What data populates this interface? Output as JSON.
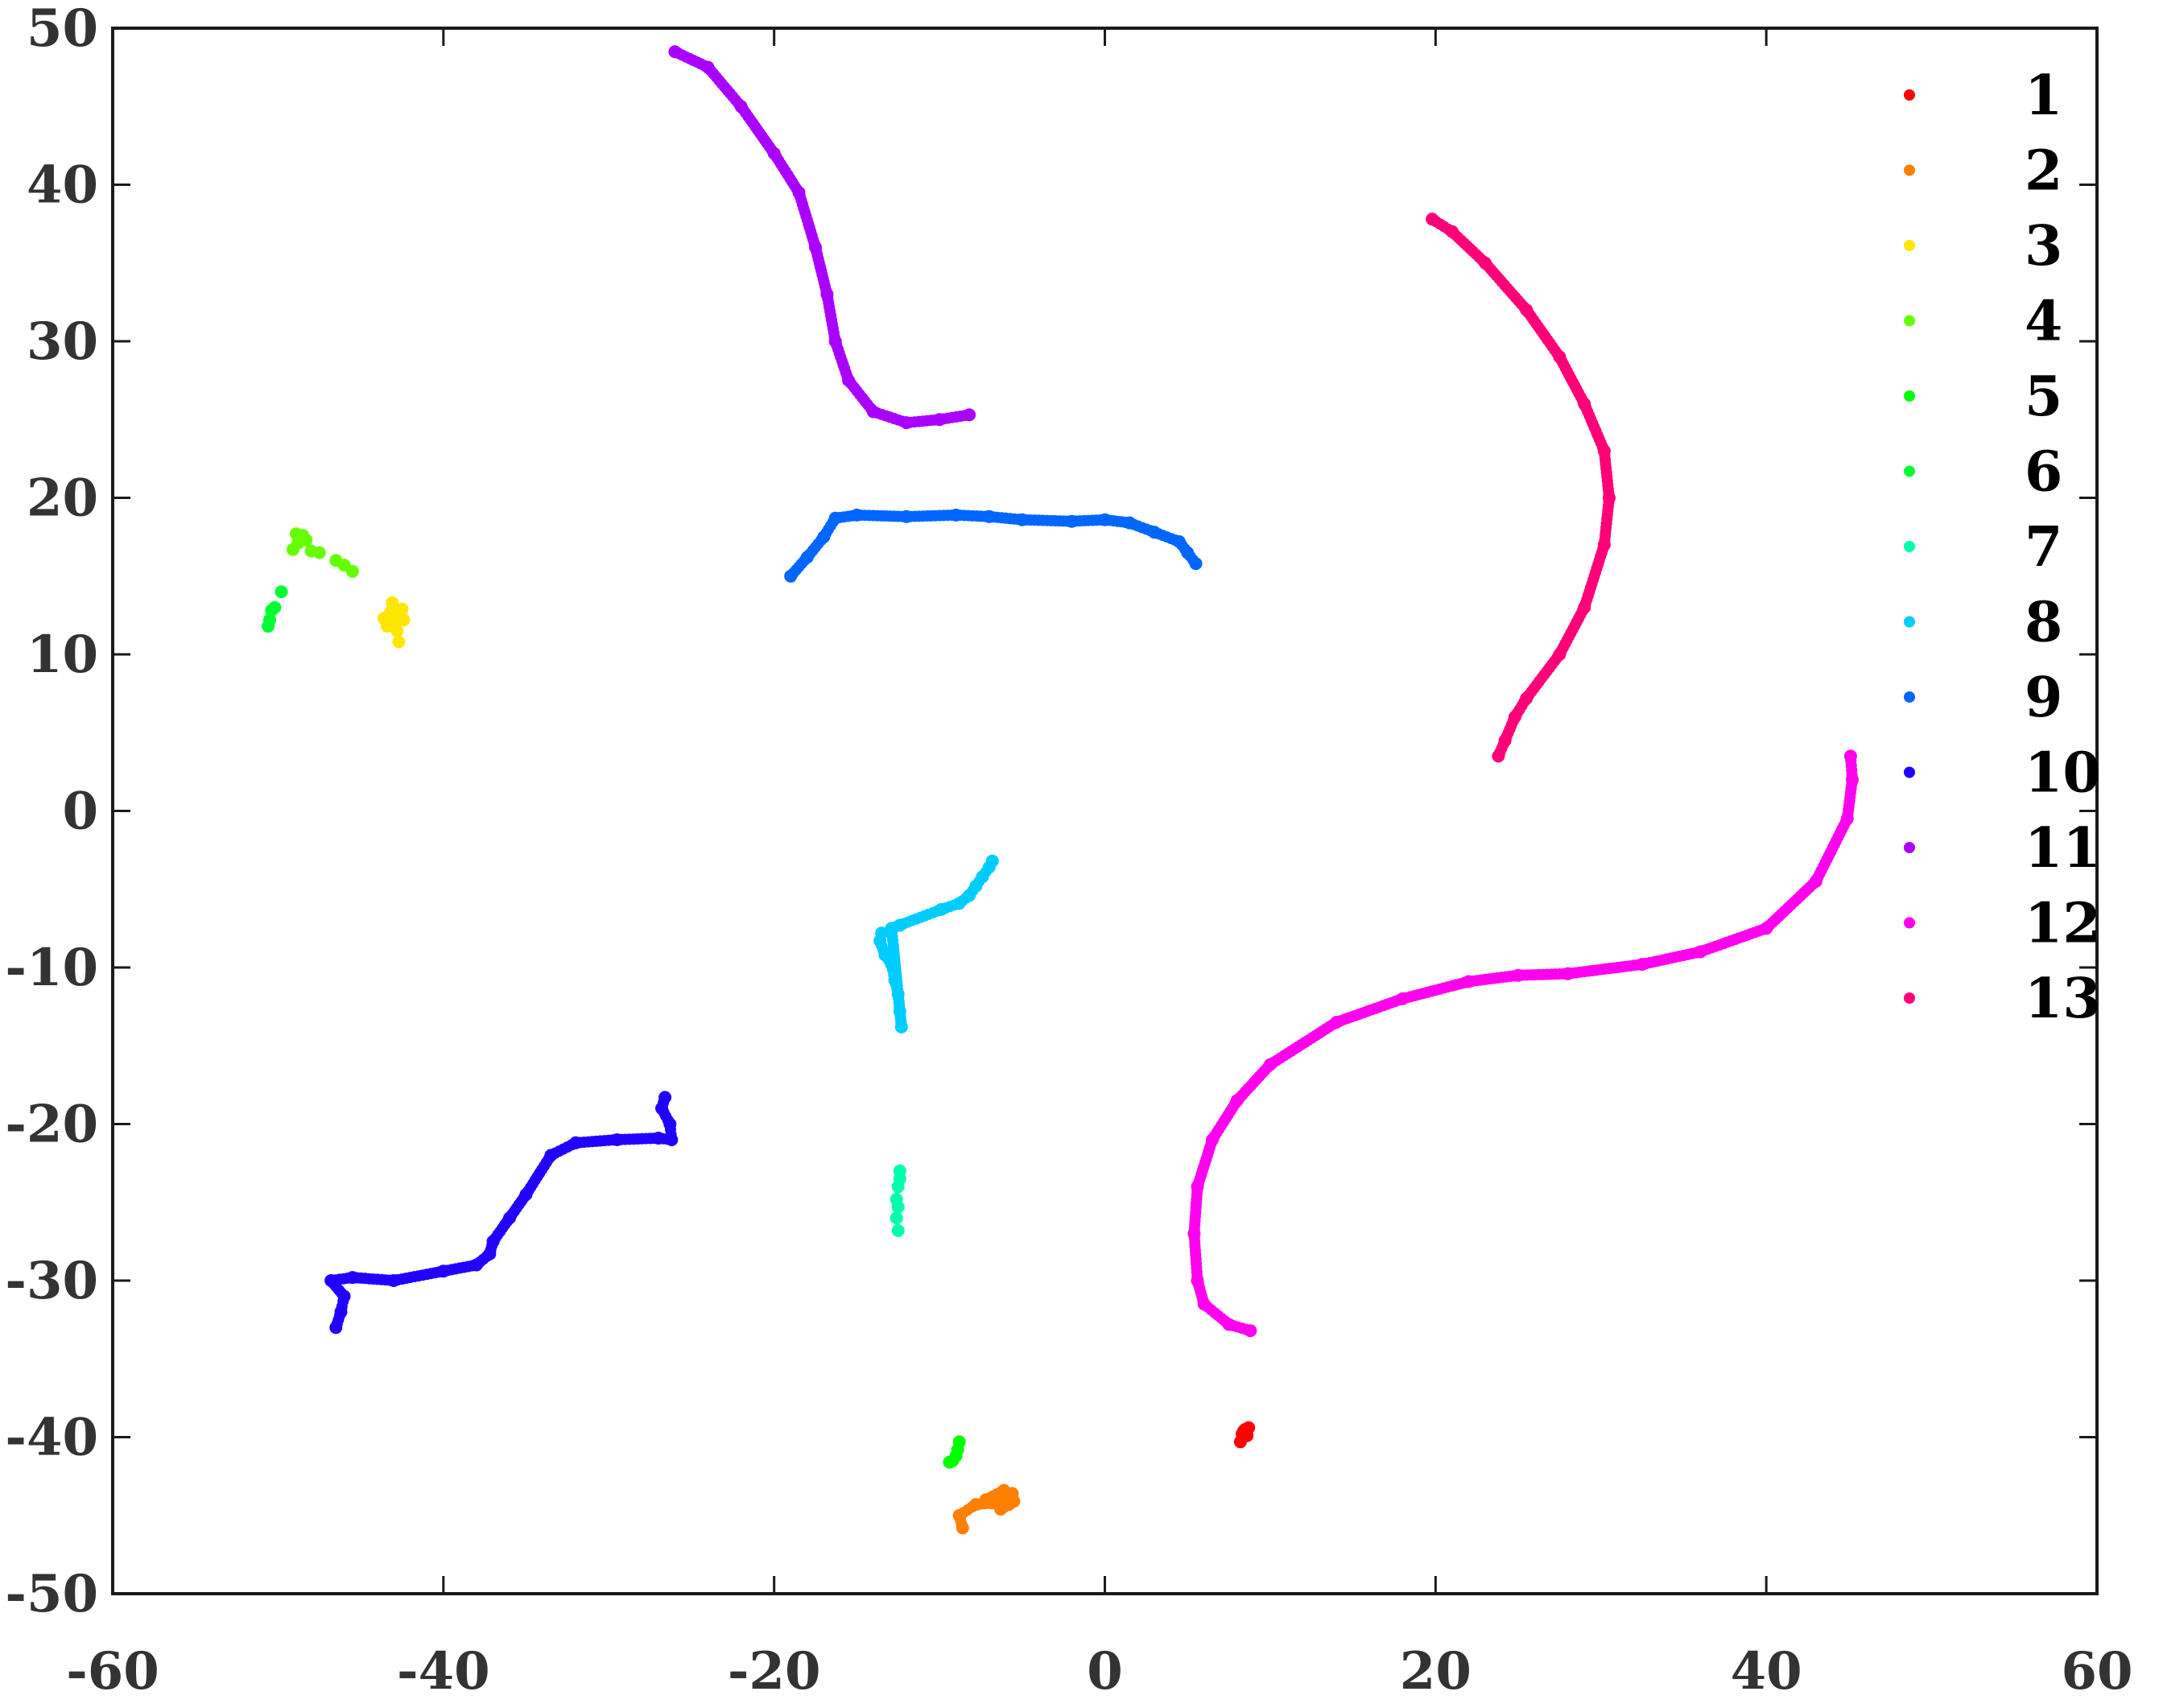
{
  "chart_data": {
    "type": "scatter",
    "title": "",
    "xlabel": "",
    "ylabel": "",
    "xlim": [
      -60,
      60
    ],
    "ylim": [
      -50,
      50
    ],
    "x_ticks": [
      "-60",
      "-40",
      "-20",
      "0",
      "20",
      "40",
      "60"
    ],
    "y_ticks": [
      "50",
      "40",
      "30",
      "20",
      "10",
      "0",
      "-10",
      "-20",
      "-30",
      "-40",
      "-50"
    ],
    "grid": false,
    "legend_position": "top-right",
    "series": [
      {
        "name": "1",
        "color": "#ff0000",
        "points": [
          [
            8.5,
            -39.5
          ],
          [
            8.7,
            -39.4
          ],
          [
            8.3,
            -39.8
          ],
          [
            8.6,
            -39.9
          ],
          [
            8.2,
            -40.3
          ],
          [
            8.4,
            -39.6
          ]
        ]
      },
      {
        "name": "2",
        "color": "#ff7f00",
        "points": [
          [
            -6.5,
            -44.0
          ],
          [
            -6.0,
            -43.8
          ],
          [
            -5.8,
            -44.3
          ],
          [
            -6.3,
            -44.6
          ],
          [
            -5.6,
            -43.6
          ],
          [
            -6.8,
            -44.2
          ],
          [
            -7.2,
            -44.0
          ],
          [
            -6.1,
            -43.4
          ],
          [
            -5.5,
            -44.1
          ],
          [
            -7.8,
            -44.3
          ],
          [
            -8.8,
            -45.0
          ],
          [
            -8.6,
            -45.8
          ]
        ]
      },
      {
        "name": "3",
        "color": "#ffe600",
        "points": [
          [
            -43.0,
            12.0
          ],
          [
            -42.6,
            12.4
          ],
          [
            -43.4,
            11.8
          ],
          [
            -42.8,
            11.5
          ],
          [
            -43.2,
            12.7
          ],
          [
            -42.4,
            12.2
          ],
          [
            -43.6,
            12.3
          ],
          [
            -42.5,
            12.9
          ],
          [
            -43.1,
            13.3
          ],
          [
            -42.7,
            10.8
          ]
        ]
      },
      {
        "name": "4",
        "color": "#66ff00",
        "points": [
          [
            -48.8,
            17.1
          ],
          [
            -48.5,
            17.6
          ],
          [
            -49.1,
            16.7
          ],
          [
            -48.3,
            17.3
          ],
          [
            -48.9,
            17.7
          ],
          [
            -48.0,
            16.6
          ],
          [
            -47.5,
            16.5
          ],
          [
            -46.5,
            16.0
          ],
          [
            -46.0,
            15.7
          ],
          [
            -45.5,
            15.3
          ]
        ]
      },
      {
        "name": "5",
        "color": "#00ff00",
        "points": [
          [
            -9.2,
            -41.5
          ],
          [
            -9.0,
            -41.2
          ],
          [
            -8.9,
            -40.8
          ],
          [
            -8.8,
            -40.3
          ],
          [
            -9.4,
            -41.6
          ]
        ]
      },
      {
        "name": "6",
        "color": "#00ff33",
        "points": [
          [
            -50.5,
            12.2
          ],
          [
            -50.4,
            12.8
          ],
          [
            -50.2,
            13.0
          ],
          [
            -50.6,
            11.8
          ],
          [
            -49.8,
            14.0
          ]
        ]
      },
      {
        "name": "7",
        "color": "#00ffaa",
        "points": [
          [
            -12.4,
            -23.5
          ],
          [
            -12.5,
            -24.0
          ],
          [
            -12.6,
            -24.8
          ],
          [
            -12.5,
            -25.3
          ],
          [
            -12.6,
            -26.0
          ],
          [
            -12.5,
            -26.8
          ],
          [
            -12.4,
            -23.0
          ]
        ]
      },
      {
        "name": "8",
        "color": "#00ccff",
        "points": [
          [
            -13.5,
            -7.8
          ],
          [
            -13.6,
            -8.3
          ],
          [
            -13.3,
            -9.2
          ],
          [
            -12.9,
            -9.8
          ],
          [
            -12.7,
            -10.8
          ],
          [
            -12.5,
            -11.7
          ],
          [
            -12.4,
            -12.8
          ],
          [
            -12.3,
            -13.8
          ],
          [
            -12.9,
            -7.5
          ],
          [
            -12.4,
            -7.3
          ],
          [
            -9.9,
            -6.3
          ],
          [
            -8.8,
            -5.9
          ],
          [
            -8.2,
            -5.4
          ],
          [
            -7.8,
            -4.8
          ],
          [
            -7.4,
            -4.2
          ],
          [
            -7.0,
            -3.6
          ],
          [
            -6.8,
            -3.2
          ]
        ]
      },
      {
        "name": "9",
        "color": "#0066ff",
        "points": [
          [
            -19.0,
            15.0
          ],
          [
            -18.0,
            16.2
          ],
          [
            -17.0,
            17.5
          ],
          [
            -16.3,
            18.7
          ],
          [
            -15.0,
            18.9
          ],
          [
            -12.0,
            18.8
          ],
          [
            -9.0,
            18.9
          ],
          [
            -7.0,
            18.8
          ],
          [
            -5.0,
            18.6
          ],
          [
            -2.0,
            18.5
          ],
          [
            0.0,
            18.6
          ],
          [
            1.5,
            18.4
          ],
          [
            3.0,
            17.8
          ],
          [
            4.5,
            17.2
          ],
          [
            5.0,
            16.5
          ],
          [
            5.5,
            15.8
          ]
        ]
      },
      {
        "name": "10",
        "color": "#2200ff",
        "points": [
          [
            -46.5,
            -33.0
          ],
          [
            -46.2,
            -32.0
          ],
          [
            -46.0,
            -31.0
          ],
          [
            -46.8,
            -30.0
          ],
          [
            -45.5,
            -29.8
          ],
          [
            -43.0,
            -30.0
          ],
          [
            -40.0,
            -29.4
          ],
          [
            -38.0,
            -29.0
          ],
          [
            -37.2,
            -28.3
          ],
          [
            -37.0,
            -27.5
          ],
          [
            -36.0,
            -26.0
          ],
          [
            -35.0,
            -24.5
          ],
          [
            -33.5,
            -22.0
          ],
          [
            -32.0,
            -21.2
          ],
          [
            -29.5,
            -21.0
          ],
          [
            -27.0,
            -20.9
          ],
          [
            -26.2,
            -21.0
          ],
          [
            -26.3,
            -20.0
          ],
          [
            -26.8,
            -19.0
          ],
          [
            -26.6,
            -18.3
          ]
        ]
      },
      {
        "name": "11",
        "color": "#aa00ff",
        "points": [
          [
            -26.0,
            48.5
          ],
          [
            -24.0,
            47.5
          ],
          [
            -22.0,
            45.0
          ],
          [
            -20.0,
            42.0
          ],
          [
            -18.5,
            39.5
          ],
          [
            -17.5,
            36.0
          ],
          [
            -16.8,
            33.0
          ],
          [
            -16.3,
            30.0
          ],
          [
            -15.5,
            27.5
          ],
          [
            -14.0,
            25.5
          ],
          [
            -12.0,
            24.8
          ],
          [
            -10.0,
            25.0
          ],
          [
            -8.2,
            25.3
          ]
        ]
      },
      {
        "name": "12",
        "color": "#ff00ee",
        "points": [
          [
            8.8,
            -33.2
          ],
          [
            7.5,
            -32.8
          ],
          [
            6.0,
            -31.5
          ],
          [
            5.6,
            -30.0
          ],
          [
            5.4,
            -27.0
          ],
          [
            5.6,
            -24.0
          ],
          [
            6.5,
            -21.0
          ],
          [
            8.0,
            -18.5
          ],
          [
            10.0,
            -16.2
          ],
          [
            14.0,
            -13.5
          ],
          [
            18.0,
            -12.0
          ],
          [
            22.0,
            -10.9
          ],
          [
            25.0,
            -10.5
          ],
          [
            28.0,
            -10.4
          ],
          [
            32.5,
            -9.8
          ],
          [
            36.0,
            -9.0
          ],
          [
            40.0,
            -7.5
          ],
          [
            43.0,
            -4.5
          ],
          [
            44.9,
            -0.5
          ],
          [
            45.2,
            2.0
          ],
          [
            45.1,
            3.5
          ]
        ]
      },
      {
        "name": "13",
        "color": "#ff0077",
        "points": [
          [
            19.8,
            37.8
          ],
          [
            21.0,
            37.0
          ],
          [
            23.0,
            35.0
          ],
          [
            25.5,
            32.0
          ],
          [
            27.5,
            29.0
          ],
          [
            29.0,
            26.0
          ],
          [
            30.2,
            23.0
          ],
          [
            30.5,
            20.0
          ],
          [
            30.2,
            17.0
          ],
          [
            29.0,
            13.0
          ],
          [
            27.5,
            10.0
          ],
          [
            25.5,
            7.2
          ],
          [
            24.8,
            6.0
          ],
          [
            24.2,
            4.5
          ],
          [
            23.8,
            3.5
          ]
        ]
      }
    ]
  }
}
